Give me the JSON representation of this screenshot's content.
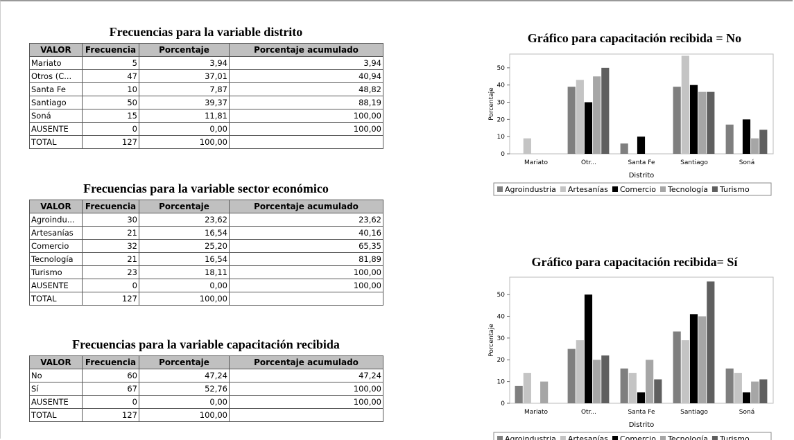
{
  "tables": [
    {
      "title": "Frecuencias para la variable distrito",
      "header": [
        "VALOR",
        "Frecuencia",
        "Porcentaje",
        "Porcentaje acumulado"
      ],
      "rows": [
        [
          "Mariato",
          5,
          "3,94",
          "3,94"
        ],
        [
          "Otros (C...",
          47,
          "37,01",
          "40,94"
        ],
        [
          "Santa Fe",
          10,
          "7,87",
          "48,82"
        ],
        [
          "Santiago",
          50,
          "39,37",
          "88,19"
        ],
        [
          "Soná",
          15,
          "11,81",
          "100,00"
        ],
        [
          "AUSENTE",
          0,
          "0,00",
          "100,00"
        ],
        [
          "TOTAL",
          127,
          "100,00"
        ]
      ]
    },
    {
      "title": "Frecuencias para la variable sector económico",
      "header": [
        "VALOR",
        "Frecuencia",
        "Porcentaje",
        "Porcentaje acumulado"
      ],
      "rows": [
        [
          "Agroindu...",
          30,
          "23,62",
          "23,62"
        ],
        [
          "Artesanías",
          21,
          "16,54",
          "40,16"
        ],
        [
          "Comercio",
          32,
          "25,20",
          "65,35"
        ],
        [
          "Tecnología",
          21,
          "16,54",
          "81,89"
        ],
        [
          "Turismo",
          23,
          "18,11",
          "100,00"
        ],
        [
          "AUSENTE",
          0,
          "0,00",
          "100,00"
        ],
        [
          "TOTAL",
          127,
          "100,00"
        ]
      ]
    },
    {
      "title": "Frecuencias para la variable capacitación recibida",
      "header": [
        "VALOR",
        "Frecuencia",
        "Porcentaje",
        "Porcentaje acumulado"
      ],
      "rows": [
        [
          "No",
          60,
          "47,24",
          "47,24"
        ],
        [
          "Sí",
          67,
          "52,76",
          "100,00"
        ],
        [
          "AUSENTE",
          0,
          "0,00",
          "100,00"
        ],
        [
          "TOTAL",
          127,
          "100,00"
        ]
      ]
    }
  ],
  "chart_data": [
    {
      "type": "bar",
      "title": "Gráfico para capacitación recibida = No",
      "x_label": "Distrito",
      "y_label": "Porcentaje",
      "categories": [
        "Mariato",
        "Otr...",
        "Santa Fe",
        "Santiago",
        "Soná"
      ],
      "ylim": [
        0,
        58
      ],
      "yticks": [
        0,
        10,
        20,
        30,
        40,
        50
      ],
      "series": [
        {
          "name": "Agroindustria",
          "color": "#7f7f7f",
          "values": [
            0,
            39,
            6,
            39,
            17
          ]
        },
        {
          "name": "Artesanías",
          "color": "#c4c4c4",
          "values": [
            9,
            43,
            0,
            57,
            0
          ]
        },
        {
          "name": "Comercio",
          "color": "#000000",
          "values": [
            0,
            30,
            10,
            40,
            20
          ]
        },
        {
          "name": "Tecnología",
          "color": "#a6a6a6",
          "values": [
            0,
            45,
            0,
            36,
            9
          ]
        },
        {
          "name": "Turismo",
          "color": "#5f5f5f",
          "values": [
            0,
            50,
            0,
            36,
            14
          ]
        }
      ]
    },
    {
      "type": "bar",
      "title": "Gráfico para capacitación recibida= Sí",
      "x_label": "Distrito",
      "y_label": "Porcentaje",
      "categories": [
        "Mariato",
        "Otr...",
        "Santa Fe",
        "Santiago",
        "Soná"
      ],
      "ylim": [
        0,
        58
      ],
      "yticks": [
        0,
        10,
        20,
        30,
        40,
        50
      ],
      "series": [
        {
          "name": "Agroindustria",
          "color": "#7f7f7f",
          "values": [
            8,
            25,
            16,
            33,
            16
          ]
        },
        {
          "name": "Artesanías",
          "color": "#c4c4c4",
          "values": [
            14,
            29,
            14,
            29,
            14
          ]
        },
        {
          "name": "Comercio",
          "color": "#000000",
          "values": [
            0,
            50,
            5,
            41,
            5
          ]
        },
        {
          "name": "Tecnología",
          "color": "#a6a6a6",
          "values": [
            10,
            20,
            20,
            40,
            10
          ]
        },
        {
          "name": "Turismo",
          "color": "#5f5f5f",
          "values": [
            0,
            22,
            11,
            56,
            11
          ]
        }
      ]
    }
  ]
}
